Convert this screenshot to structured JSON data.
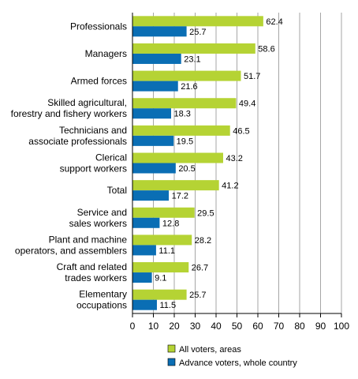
{
  "chart_data": {
    "type": "bar",
    "orientation": "horizontal",
    "categories": [
      [
        "Professionals"
      ],
      [
        "Managers"
      ],
      [
        "Armed forces"
      ],
      [
        "Skilled agricultural,",
        "forestry and fishery workers"
      ],
      [
        "Technicians and",
        "associate professionals"
      ],
      [
        "Clerical",
        "support workers"
      ],
      [
        "Total"
      ],
      [
        "Service and",
        "sales workers"
      ],
      [
        "Plant and machine",
        "operators, and assemblers"
      ],
      [
        "Craft and related",
        "trades workers"
      ],
      [
        "Elementary",
        "occupations"
      ]
    ],
    "series": [
      {
        "name": "All voters, areas",
        "color": "#b5d334",
        "values": [
          62.4,
          58.6,
          51.7,
          49.4,
          46.5,
          43.2,
          41.2,
          29.5,
          28.2,
          26.7,
          25.7
        ],
        "labels": [
          "62.4",
          "58.6",
          "51.7",
          "49.4",
          "46.5",
          "43.2",
          "41.2",
          "29.5",
          "28.2",
          "26.7",
          "25.7"
        ]
      },
      {
        "name": "Advance voters, whole country",
        "color": "#0a6eb4",
        "values": [
          25.7,
          23.1,
          21.6,
          18.3,
          19.5,
          20.5,
          17.2,
          12.8,
          11.1,
          9.1,
          11.5
        ],
        "labels": [
          "25.7",
          "23.1",
          "21.6",
          "18.3",
          "19.5",
          "20.5",
          "17.2",
          "12.8",
          "11.1",
          "9.1",
          "11.5"
        ]
      }
    ],
    "xlim": [
      0,
      100
    ],
    "xticks": [
      "0",
      "10",
      "20",
      "30",
      "40",
      "50",
      "60",
      "70",
      "80",
      "90",
      "100"
    ],
    "grid": "vertical",
    "legend": "bottom"
  }
}
